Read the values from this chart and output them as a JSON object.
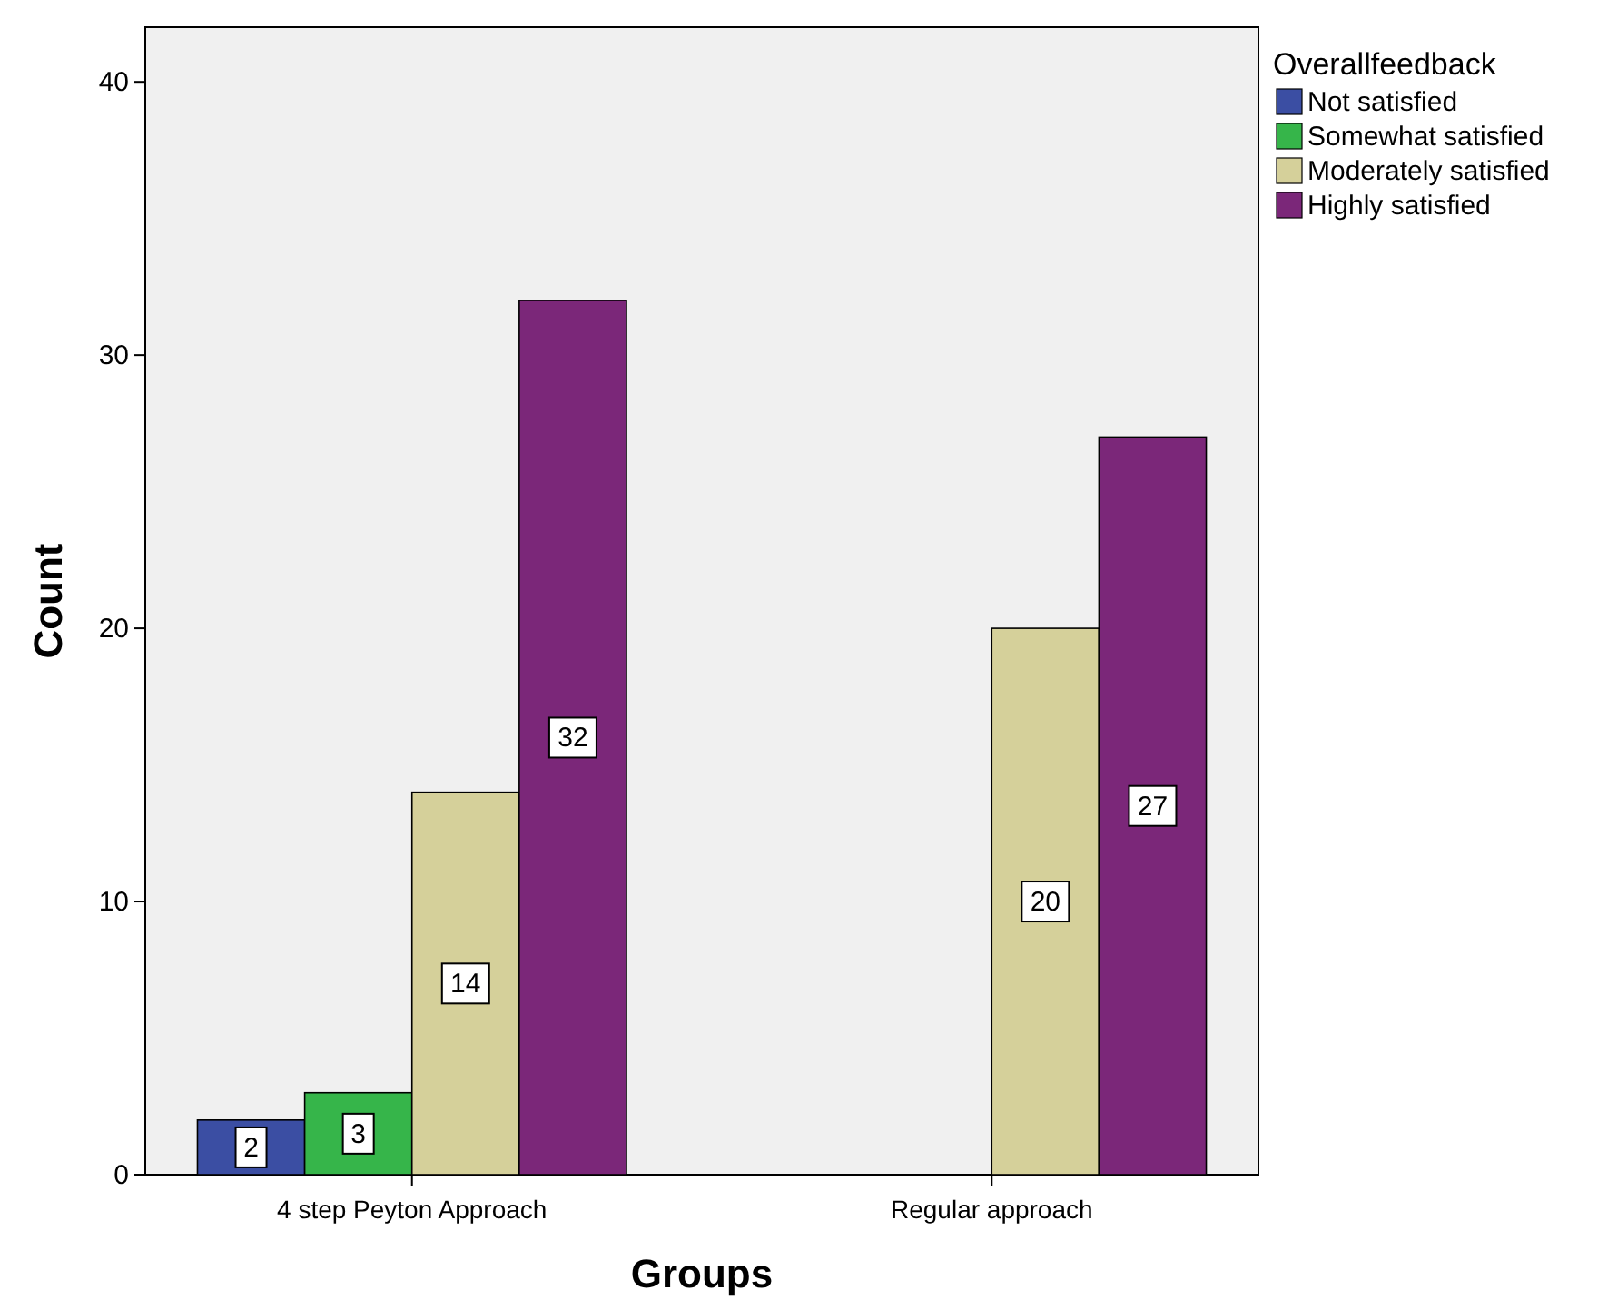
{
  "chart_data": {
    "type": "bar",
    "xlabel": "Groups",
    "ylabel": "Count",
    "legend_title": "Overallfeedback",
    "categories": [
      "4 step Peyton Approach",
      "Regular approach"
    ],
    "series": [
      {
        "name": "Not satisfied",
        "color": "#3b4ea3",
        "values": [
          2,
          null
        ]
      },
      {
        "name": "Somewhat satisfied",
        "color": "#36b54a",
        "values": [
          3,
          null
        ]
      },
      {
        "name": "Moderately satisfied",
        "color": "#d5d09a",
        "values": [
          14,
          20
        ]
      },
      {
        "name": "Highly satisfied",
        "color": "#7b2779",
        "values": [
          32,
          27
        ]
      }
    ],
    "ylim": [
      0,
      42
    ],
    "yticks": [
      0,
      10,
      20,
      30,
      40
    ],
    "data_labels": true,
    "legend": "top right",
    "grid": false
  }
}
